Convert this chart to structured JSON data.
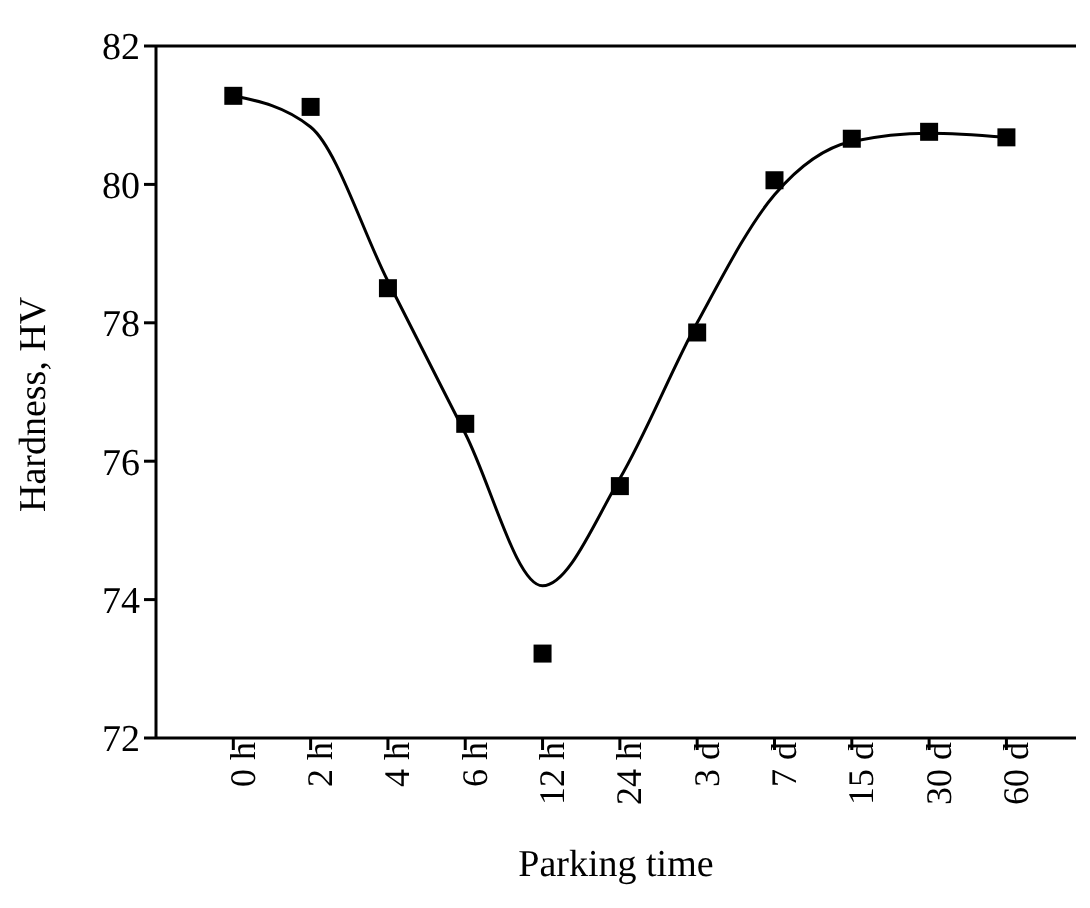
{
  "chart_data": {
    "type": "scatter",
    "xlabel": "Parking time",
    "ylabel": "Hardness, HV",
    "categories": [
      "0 h",
      "2 h",
      "4 h",
      "6 h",
      "12 h",
      "24 h",
      "3 d",
      "7 d",
      "15 d",
      "30 d",
      "60 d"
    ],
    "series": [
      {
        "color": "#000000",
        "marker": "square",
        "values": [
          81.28,
          81.12,
          78.5,
          76.54,
          73.22,
          75.64,
          77.86,
          80.06,
          80.66,
          80.76,
          80.68
        ]
      },
      {
        "type": "line",
        "color": "#000000",
        "marker": "none",
        "line_style": "solid",
        "values": [
          81.28,
          80.83,
          78.6,
          76.4,
          74.2,
          75.75,
          78.0,
          79.85,
          80.62,
          80.74,
          80.68
        ]
      }
    ],
    "ylim": [
      72,
      82
    ],
    "yticks": [
      72,
      74,
      76,
      78,
      80,
      82
    ],
    "grid": false,
    "legend": false
  }
}
